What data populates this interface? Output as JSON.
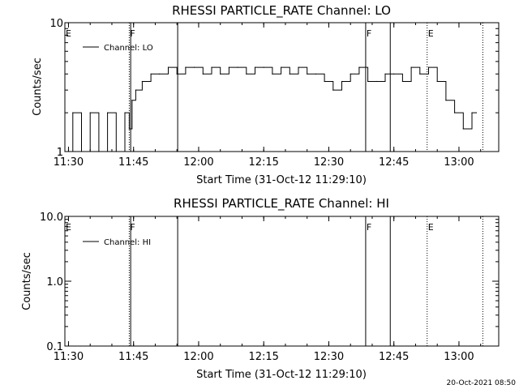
{
  "chart_data": [
    {
      "type": "line",
      "title": "RHESSI PARTICLE_RATE Channel: LO",
      "xlabel": "Start Time (31-Oct-12 11:29:10)",
      "ylabel": "Counts/sec",
      "y_scale": "log",
      "ylim": [
        1,
        10
      ],
      "xlim": [
        "11:29:10",
        "13:09:10"
      ],
      "x_ticks": [
        "11:30",
        "11:45",
        "12:00",
        "12:15",
        "12:30",
        "12:45",
        "13:00"
      ],
      "y_ticks": [
        "1",
        "10"
      ],
      "legend": {
        "position": "top-left",
        "entries": [
          "Channel: LO"
        ]
      },
      "series": [
        {
          "name": "Channel: LO",
          "x": [
            "11:29:10",
            "11:31:00",
            "11:33:00",
            "11:35:00",
            "11:37:00",
            "11:39:00",
            "11:41:00",
            "11:43:00",
            "11:44:00",
            "11:44:40",
            "11:45:30",
            "11:47:00",
            "11:49:00",
            "11:51:00",
            "11:53:00",
            "11:55:00",
            "11:57:00",
            "11:59:00",
            "12:01:00",
            "12:03:00",
            "12:05:00",
            "12:07:00",
            "12:09:00",
            "12:11:00",
            "12:13:00",
            "12:15:00",
            "12:17:00",
            "12:19:00",
            "12:21:00",
            "12:23:00",
            "12:25:00",
            "12:27:00",
            "12:29:00",
            "12:31:00",
            "12:33:00",
            "12:35:00",
            "12:37:00",
            "12:39:00",
            "12:41:00",
            "12:43:00",
            "12:45:00",
            "12:47:00",
            "12:49:00",
            "12:51:00",
            "12:53:00",
            "12:55:00",
            "12:57:00",
            "12:59:00",
            "13:01:00",
            "13:03:00",
            "13:04:00"
          ],
          "values": [
            1,
            2,
            1,
            2,
            1,
            2,
            1,
            2,
            1.5,
            2.5,
            3,
            3.5,
            4,
            4,
            4.5,
            4,
            4.5,
            4.5,
            4,
            4.5,
            4,
            4.5,
            4.5,
            4,
            4.5,
            4.5,
            4,
            4.5,
            4,
            4.5,
            4,
            4,
            3.5,
            3,
            3.5,
            4,
            4.5,
            3.5,
            3.5,
            4,
            4,
            3.5,
            4.5,
            4,
            4.5,
            3.5,
            2.5,
            2,
            1.5,
            2,
            2
          ]
        }
      ],
      "annotations": [
        {
          "label": "E",
          "time": "11:29:10",
          "style": "dotted"
        },
        {
          "label": "F",
          "time": "11:44:00",
          "style": "dotted"
        },
        {
          "label": "",
          "time": "11:44:20",
          "style": "solid"
        },
        {
          "label": "",
          "time": "11:55:10",
          "style": "solid"
        },
        {
          "label": "F",
          "time": "12:38:30",
          "style": "solid"
        },
        {
          "label": "",
          "time": "12:44:10",
          "style": "solid"
        },
        {
          "label": "E",
          "time": "12:52:40",
          "style": "dotted"
        },
        {
          "label": "",
          "time": "13:05:30",
          "style": "dotted"
        }
      ]
    },
    {
      "type": "line",
      "title": "RHESSI PARTICLE_RATE Channel: HI",
      "xlabel": "Start Time (31-Oct-12 11:29:10)",
      "ylabel": "Counts/sec",
      "y_scale": "log",
      "ylim": [
        0.1,
        10
      ],
      "xlim": [
        "11:29:10",
        "13:09:10"
      ],
      "x_ticks": [
        "11:30",
        "11:45",
        "12:00",
        "12:15",
        "12:30",
        "12:45",
        "13:00"
      ],
      "y_ticks": [
        "10.0",
        "1.0",
        "0.1"
      ],
      "legend": {
        "position": "top-left",
        "entries": [
          "Channel: HI"
        ]
      },
      "series": [
        {
          "name": "Channel: HI",
          "x": [],
          "values": []
        }
      ],
      "annotations": [
        {
          "label": "E",
          "time": "11:29:10",
          "style": "dotted"
        },
        {
          "label": "F",
          "time": "11:44:00",
          "style": "dotted"
        },
        {
          "label": "",
          "time": "11:44:20",
          "style": "solid"
        },
        {
          "label": "",
          "time": "11:55:10",
          "style": "solid"
        },
        {
          "label": "F",
          "time": "12:38:30",
          "style": "solid"
        },
        {
          "label": "",
          "time": "12:44:10",
          "style": "solid"
        },
        {
          "label": "E",
          "time": "12:52:40",
          "style": "dotted"
        },
        {
          "label": "",
          "time": "13:05:30",
          "style": "dotted"
        }
      ]
    }
  ],
  "footer": {
    "timestamp": "20-Oct-2021 08:50"
  }
}
